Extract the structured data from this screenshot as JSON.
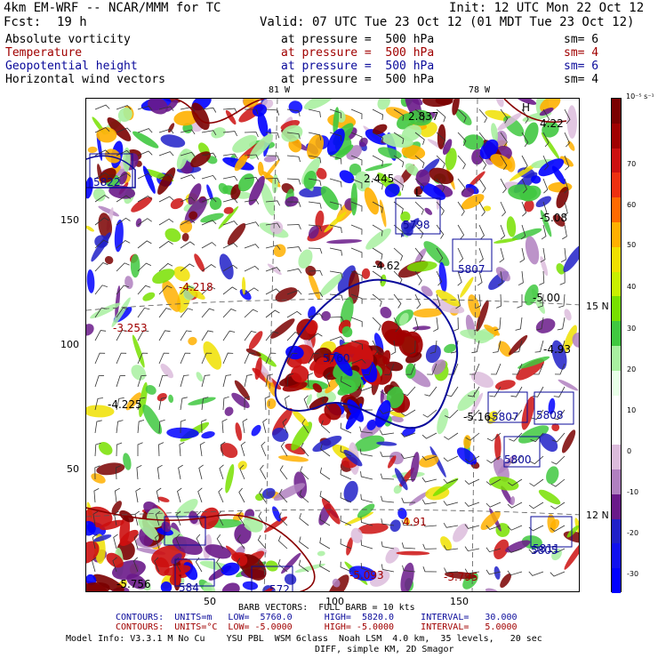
{
  "header": {
    "model": "4km EM-WRF -- NCAR/MMM for TC",
    "init": "Init: 12 UTC Mon 22 Oct 12",
    "fcst_label": "Fcst:",
    "fcst_value": "19 h",
    "valid": "Valid: 07 UTC Tue 23 Oct 12 (01 MDT Tue 23 Oct 12)"
  },
  "fields": [
    {
      "name": "Absolute vorticity",
      "level": "at pressure =  500 hPa",
      "sm": "sm= 6",
      "color": "#000000"
    },
    {
      "name": "Temperature",
      "level": "at pressure =  500 hPa",
      "sm": "sm= 4",
      "color": "#a00000"
    },
    {
      "name": "Geopotential height",
      "level": "at pressure =  500 hPa",
      "sm": "sm= 6",
      "color": "#0a0a9a"
    },
    {
      "name": "Horizontal wind vectors",
      "level": "at pressure =  500 hPa",
      "sm": "sm= 4",
      "color": "#000000"
    }
  ],
  "top_longitudes": [
    "81 W",
    "78 W"
  ],
  "right_latitudes": [
    "15 N",
    "12 N"
  ],
  "y_ticks": [
    "150",
    "100",
    "50"
  ],
  "x_ticks": [
    "50",
    "100",
    "150"
  ],
  "map_labels": [
    {
      "text": "2.837",
      "color": "#000000"
    },
    {
      "text": "4.22",
      "color": "#000000"
    },
    {
      "text": "H",
      "color": "#000000"
    },
    {
      "text": "-5.08",
      "color": "#000000"
    },
    {
      "text": "5822",
      "color": "#0a0a9a"
    },
    {
      "text": "2.445",
      "color": "#000000"
    },
    {
      "text": "5798",
      "color": "#0a0a9a"
    },
    {
      "text": "L",
      "color": "#000000"
    },
    {
      "text": "-4.62",
      "color": "#000000"
    },
    {
      "text": "5807",
      "color": "#0a0a9a"
    },
    {
      "text": "-4.218",
      "color": "#a00000"
    },
    {
      "text": "-5.00",
      "color": "#000000"
    },
    {
      "text": "-3.253",
      "color": "#a00000"
    },
    {
      "text": "-4.93",
      "color": "#000000"
    },
    {
      "text": "5760",
      "color": "#0a0a9a"
    },
    {
      "text": "-4.225",
      "color": "#000000"
    },
    {
      "text": "-5.16",
      "color": "#000000"
    },
    {
      "text": "5807",
      "color": "#0a0a9a"
    },
    {
      "text": "5808",
      "color": "#0a0a9a"
    },
    {
      "text": "5800",
      "color": "#0a0a9a"
    },
    {
      "text": "4.91",
      "color": "#a00000"
    },
    {
      "text": "5811",
      "color": "#0a0a9a"
    },
    {
      "text": "-5.756",
      "color": "#000000"
    },
    {
      "text": "584",
      "color": "#0a0a9a"
    },
    {
      "text": "572",
      "color": "#0a0a9a"
    },
    {
      "text": "-5.093",
      "color": "#a00000"
    },
    {
      "text": "-3.795",
      "color": "#a00000"
    },
    {
      "text": "5805",
      "color": "#0a0a9a"
    }
  ],
  "colorbar": {
    "units": "10⁻⁵ s⁻¹",
    "labels": [
      "70",
      "60",
      "50",
      "40",
      "30",
      "20",
      "10",
      "0",
      "-10",
      "-20",
      "-30"
    ],
    "colors": [
      "#7a0000",
      "#a00000",
      "#cc1010",
      "#ee3010",
      "#ff6a00",
      "#ffb000",
      "#f0e000",
      "#c8f000",
      "#78e000",
      "#40c840",
      "#a8f0a0",
      "#e8ffe8",
      "#ffffff",
      "#ffffff",
      "#dcbcdc",
      "#b080c0",
      "#6a1a8a",
      "#2020c8",
      "#1010f0",
      "#0000ff"
    ]
  },
  "footer": {
    "barb": "BARB VECTORS:  FULL BARB = 10 kts",
    "contours1": "CONTOURS:  UNITS=m   LOW=  5760.0      HIGH=  5820.0     INTERVAL=   30.000",
    "contours2": "CONTOURS:  UNITS=°C  LOW= -5.0000      HIGH= -5.0000     INTERVAL=   5.0000",
    "model_info": "Model Info: V3.3.1 M No Cu    YSU PBL  WSM 6class  Noah LSM  4.0 km,  35 levels,   20 sec",
    "diff": "DIFF, simple KM, 2D Smagor"
  }
}
